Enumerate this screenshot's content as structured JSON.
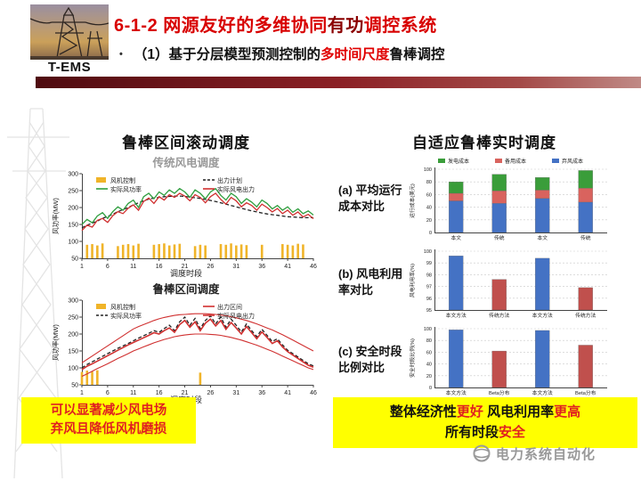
{
  "header": {
    "brand": "T-EMS",
    "bullet": "•",
    "title": {
      "prefix": "6-1-2 ",
      "part1": "网源友好的多维协同",
      "em": "有功",
      "part2": "调控系统"
    },
    "subtitle": {
      "prefix": "（1）基于分层模型预测控制的",
      "em": "多时间尺度",
      "suffix": "鲁棒调控"
    }
  },
  "left_panel": {
    "title": "鲁棒区间滚动调度",
    "chart1_caption": "传统风电调度",
    "chart2_caption": "鲁棒区间调度",
    "callout_line1": "可以显著减少风电场",
    "callout_line2": "弃风且降低风机磨损"
  },
  "right_panel": {
    "title": "自适应鲁棒实时调度",
    "callout": {
      "t1": "整体经济性",
      "e1": "更好",
      "t2": " 风电利用率",
      "e2": "更高",
      "t3": "所有时段",
      "e3": "安全"
    }
  },
  "footer": {
    "brand": "电力系统自动化"
  },
  "chart_data": [
    {
      "id": "trad",
      "type": "line",
      "title": "传统风电调度",
      "xlabel": "调度时段",
      "ylabel": "风功率(MW)",
      "ylim": [
        50,
        300
      ],
      "yticks": [
        50,
        100,
        150,
        200,
        250,
        300
      ],
      "xticks": [
        1,
        6,
        11,
        16,
        21,
        26,
        31,
        36,
        41,
        46
      ],
      "n": 46,
      "legend": [
        {
          "label": "风机控制",
          "color": "#f0b429",
          "swatch": "rect"
        },
        {
          "label": "出力计划",
          "color": "#222222",
          "swatch": "line",
          "dash": true
        },
        {
          "label": "实际风功率",
          "color": "#2e9e3e",
          "swatch": "line"
        },
        {
          "label": "实际风电出力",
          "color": "#d03030",
          "swatch": "line"
        }
      ],
      "bars": {
        "color": "#f0b429",
        "values": [
          0,
          90,
          92,
          88,
          94,
          0,
          0,
          86,
          90,
          92,
          88,
          93,
          0,
          0,
          90,
          92,
          94,
          88,
          91,
          93,
          0,
          0,
          86,
          90,
          88,
          0,
          0,
          92,
          90,
          94,
          88,
          91,
          89,
          0,
          0,
          90,
          0,
          0,
          0,
          92,
          90,
          88,
          93,
          91,
          0,
          0
        ]
      },
      "series": [
        {
          "name": "出力计划",
          "color": "#222222",
          "dash": true,
          "values": [
            140,
            148,
            154,
            160,
            168,
            174,
            180,
            188,
            194,
            200,
            208,
            214,
            220,
            225,
            228,
            230,
            232,
            233,
            234,
            234,
            233,
            231,
            229,
            227,
            224,
            221,
            218,
            214,
            210,
            206,
            202,
            198,
            194,
            190,
            187,
            184,
            181,
            179,
            177,
            175,
            173,
            172,
            171,
            170,
            170,
            170
          ]
        },
        {
          "name": "实际风功率",
          "color": "#2e9e3e",
          "values": [
            150,
            165,
            155,
            175,
            185,
            168,
            188,
            202,
            192,
            212,
            222,
            200,
            232,
            242,
            226,
            246,
            236,
            252,
            242,
            256,
            246,
            230,
            252,
            242,
            226,
            246,
            256,
            236,
            222,
            242,
            232,
            212,
            226,
            216,
            202,
            222,
            212,
            196,
            206,
            192,
            202,
            186,
            196,
            182,
            190,
            178
          ]
        },
        {
          "name": "实际风电出力",
          "color": "#d03030",
          "values": [
            132,
            148,
            142,
            162,
            168,
            156,
            176,
            188,
            182,
            198,
            208,
            192,
            218,
            228,
            212,
            232,
            222,
            238,
            230,
            242,
            234,
            220,
            238,
            230,
            214,
            232,
            242,
            224,
            210,
            230,
            220,
            202,
            214,
            206,
            192,
            210,
            200,
            187,
            197,
            182,
            192,
            177,
            187,
            172,
            180,
            167
          ]
        }
      ]
    },
    {
      "id": "robust",
      "type": "line",
      "title": "鲁棒区间调度",
      "xlabel": "调度时段",
      "ylabel": "风功率(MW)",
      "ylim": [
        50,
        300
      ],
      "yticks": [
        50,
        100,
        150,
        200,
        250,
        300
      ],
      "xticks": [
        1,
        6,
        11,
        16,
        21,
        26,
        31,
        36,
        41,
        46
      ],
      "n": 46,
      "legend": [
        {
          "label": "风机控制",
          "color": "#f0b429",
          "swatch": "rect"
        },
        {
          "label": "出力区间",
          "color": "#d03030",
          "swatch": "line"
        },
        {
          "label": "实际风功率",
          "color": "#222222",
          "swatch": "line",
          "dash": true
        },
        {
          "label": "实际风电出力",
          "color": "#d03030",
          "swatch": "line"
        }
      ],
      "bars": {
        "color": "#f0b429",
        "values": [
          88,
          92,
          89,
          93,
          0,
          0,
          0,
          0,
          0,
          0,
          0,
          0,
          0,
          0,
          0,
          0,
          0,
          0,
          0,
          0,
          0,
          0,
          0,
          86,
          0,
          0,
          0,
          0,
          0,
          0,
          0,
          0,
          0,
          0,
          0,
          0,
          0,
          0,
          0,
          0,
          0,
          0,
          0,
          0,
          0,
          0
        ]
      },
      "band": {
        "color": "#d03030",
        "upper": [
          115,
          125,
          135,
          145,
          155,
          165,
          175,
          185,
          195,
          205,
          215,
          222,
          228,
          234,
          240,
          245,
          249,
          252,
          255,
          257,
          258,
          259,
          260,
          260,
          260,
          259,
          258,
          256,
          254,
          251,
          248,
          244,
          240,
          235,
          230,
          224,
          218,
          212,
          205,
          198,
          190,
          182,
          174,
          166,
          158,
          150
        ],
        "lower": [
          75,
          82,
          90,
          98,
          105,
          112,
          120,
          128,
          135,
          142,
          150,
          156,
          162,
          168,
          174,
          179,
          184,
          188,
          192,
          195,
          197,
          199,
          200,
          200,
          200,
          199,
          198,
          196,
          193,
          190,
          186,
          182,
          177,
          172,
          167,
          161,
          155,
          149,
          142,
          135,
          128,
          121,
          114,
          107,
          100,
          95
        ]
      },
      "series": [
        {
          "name": "实际风功率",
          "color": "#222222",
          "dash": true,
          "values": [
            100,
            110,
            118,
            126,
            134,
            142,
            150,
            158,
            165,
            172,
            180,
            188,
            195,
            202,
            210,
            205,
            216,
            226,
            210,
            236,
            250,
            226,
            246,
            216,
            240,
            254,
            230,
            250,
            220,
            244,
            226,
            206,
            230,
            210,
            192,
            214,
            196,
            178,
            186,
            168,
            152,
            142,
            132,
            122,
            112,
            106
          ]
        },
        {
          "name": "实际风电出力",
          "color": "#d03030",
          "width": 1.6,
          "values": [
            95,
            105,
            112,
            120,
            128,
            136,
            144,
            152,
            160,
            168,
            175,
            182,
            189,
            196,
            204,
            200,
            210,
            218,
            205,
            228,
            240,
            220,
            236,
            210,
            232,
            244,
            224,
            240,
            214,
            234,
            218,
            200,
            222,
            204,
            186,
            206,
            190,
            172,
            180,
            162,
            148,
            138,
            128,
            118,
            108,
            102
          ]
        }
      ]
    },
    {
      "id": "cost",
      "type": "stacked_bar",
      "label": "(a) 平均运行成本对比",
      "ylabel": "运行成本(美元)",
      "ylim": [
        0,
        100
      ],
      "yticks": [
        0,
        20,
        40,
        60,
        80,
        100
      ],
      "categories": [
        "本文",
        "传统",
        "本文",
        "传统"
      ],
      "legend": [
        {
          "label": "发电成本",
          "color": "#3a9d3a"
        },
        {
          "label": "备用成本",
          "color": "#d9635e"
        },
        {
          "label": "弃风成本",
          "color": "#4472c4"
        }
      ],
      "series": [
        {
          "name": "弃风成本",
          "color": "#4472c4",
          "values": [
            50,
            46,
            54,
            48
          ]
        },
        {
          "name": "备用成本",
          "color": "#d9635e",
          "values": [
            12,
            20,
            13,
            22
          ]
        },
        {
          "name": "发电成本",
          "color": "#3a9d3a",
          "values": [
            18,
            26,
            20,
            28
          ]
        }
      ]
    },
    {
      "id": "util",
      "type": "bar",
      "label": "(b) 风电利用率对比",
      "ylabel": "风电利用率(%)",
      "ylim": [
        95,
        100
      ],
      "yticks": [
        95,
        96,
        97,
        98,
        99,
        100
      ],
      "categories": [
        "本文方法",
        "传统方法",
        "本文方法",
        "传统方法"
      ],
      "values": [
        99.6,
        97.6,
        99.4,
        96.9
      ],
      "colors": [
        "#4472c4",
        "#c0504d",
        "#4472c4",
        "#c0504d"
      ]
    },
    {
      "id": "safe",
      "type": "bar",
      "label": "(c) 安全时段比例对比",
      "ylabel": "安全时段比例(%)",
      "ylim": [
        0,
        100
      ],
      "yticks": [
        0,
        20,
        40,
        60,
        80,
        100
      ],
      "categories": [
        "本文方法",
        "Beta分布",
        "本文方法",
        "Beta分布"
      ],
      "values": [
        98,
        62,
        97,
        72
      ],
      "colors": [
        "#4472c4",
        "#c0504d",
        "#4472c4",
        "#c0504d"
      ]
    }
  ]
}
